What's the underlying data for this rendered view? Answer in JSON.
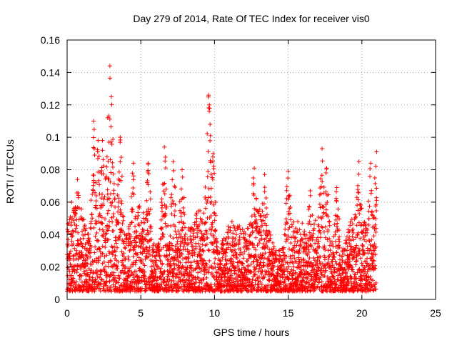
{
  "chart_data": {
    "type": "scatter",
    "title": "Day 279 of 2014, Rate Of TEC Index for receiver vis0",
    "xlabel": "GPS time / hours",
    "ylabel": "ROTI / TECUs",
    "xlim": [
      0,
      25
    ],
    "ylim": [
      0,
      0.16
    ],
    "x_ticks": [
      0,
      5,
      10,
      15,
      20,
      25
    ],
    "x_tick_labels": [
      "0",
      "5",
      "10",
      "15",
      "20",
      "25"
    ],
    "y_ticks": [
      0,
      0.02,
      0.04,
      0.06,
      0.08,
      0.1,
      0.12,
      0.14,
      0.16
    ],
    "y_tick_labels": [
      "0",
      "0.02",
      "0.04",
      "0.06",
      "0.08",
      "0.1",
      "0.12",
      "0.14",
      "0.16"
    ],
    "grid": true,
    "marker": "+",
    "color": "#ff0000",
    "series": [
      {
        "name": "ROTI",
        "x_range": [
          0,
          21
        ],
        "typical_range": [
          0.005,
          0.06
        ],
        "peaks": [
          {
            "x": 0.3,
            "y": 0.06
          },
          {
            "x": 0.7,
            "y": 0.074
          },
          {
            "x": 1.8,
            "y": 0.11
          },
          {
            "x": 2.1,
            "y": 0.098
          },
          {
            "x": 2.4,
            "y": 0.098
          },
          {
            "x": 2.75,
            "y": 0.112
          },
          {
            "x": 2.9,
            "y": 0.144
          },
          {
            "x": 3.0,
            "y": 0.125
          },
          {
            "x": 3.6,
            "y": 0.1
          },
          {
            "x": 4.5,
            "y": 0.084
          },
          {
            "x": 5.5,
            "y": 0.084
          },
          {
            "x": 6.6,
            "y": 0.094
          },
          {
            "x": 7.2,
            "y": 0.085
          },
          {
            "x": 7.8,
            "y": 0.08
          },
          {
            "x": 9.6,
            "y": 0.126
          },
          {
            "x": 9.65,
            "y": 0.12
          },
          {
            "x": 9.7,
            "y": 0.108
          },
          {
            "x": 9.9,
            "y": 0.09
          },
          {
            "x": 12.7,
            "y": 0.081
          },
          {
            "x": 13.4,
            "y": 0.077
          },
          {
            "x": 15.0,
            "y": 0.079
          },
          {
            "x": 16.5,
            "y": 0.067
          },
          {
            "x": 17.3,
            "y": 0.093
          },
          {
            "x": 17.6,
            "y": 0.081
          },
          {
            "x": 18.3,
            "y": 0.069
          },
          {
            "x": 19.8,
            "y": 0.085
          },
          {
            "x": 20.6,
            "y": 0.084
          },
          {
            "x": 21.0,
            "y": 0.091
          }
        ]
      }
    ]
  }
}
